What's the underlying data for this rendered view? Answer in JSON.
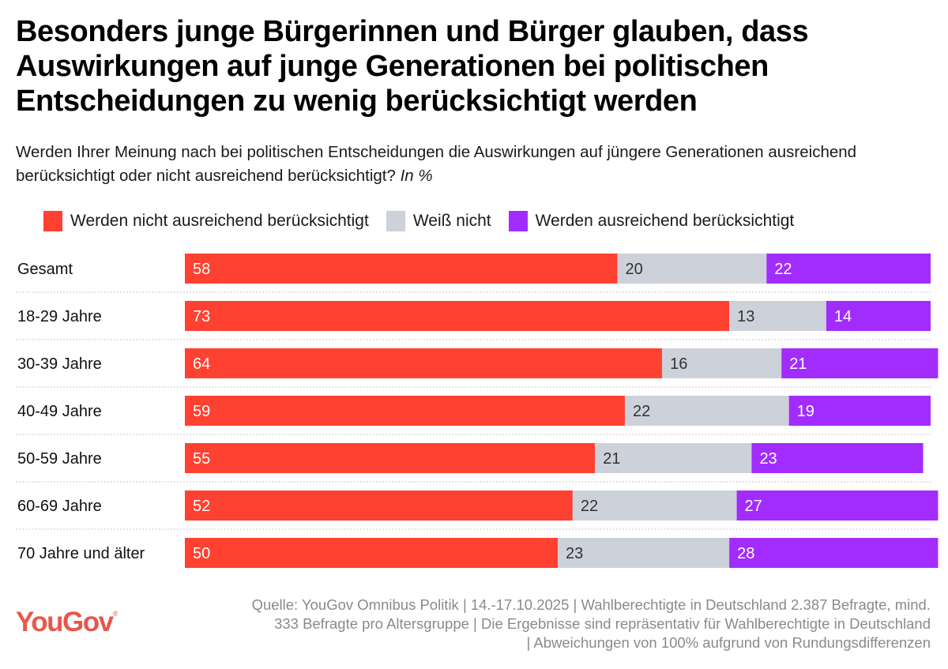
{
  "colors": {
    "not_sufficient": "#ff4131",
    "dont_know": "#cdd1da",
    "sufficient": "#a22cfd",
    "label_on_dark": "#ffffff",
    "label_on_light": "#333333",
    "logo": "#e8574b"
  },
  "header": {
    "title": "Besonders junge Bürgerinnen und Bürger glauben, dass Auswirkungen auf junge Generationen bei politischen Entscheidungen zu wenig berücksichtigt werden",
    "subtitle": "Werden Ihrer Meinung nach bei politischen Entscheidungen die Auswirkungen auf jüngere Generationen ausreichend berücksichtigt oder nicht ausreichend berücksichtigt?",
    "unit": "In %"
  },
  "legend": [
    {
      "label": "Werden nicht ausreichend berücksichtigt",
      "color": "#ff4131"
    },
    {
      "label": "Weiß nicht",
      "color": "#cdd1da"
    },
    {
      "label": "Werden ausreichend berücksichtigt",
      "color": "#a22cfd"
    }
  ],
  "chart_data": {
    "type": "bar",
    "orientation": "horizontal",
    "stacked": true,
    "title": "Besonders junge Bürgerinnen und Bürger glauben, dass Auswirkungen auf junge Generationen bei politischen Entscheidungen zu wenig berücksichtigt werden",
    "subtitle": "Werden Ihrer Meinung nach bei politischen Entscheidungen die Auswirkungen auf jüngere Generationen ausreichend berücksichtigt oder nicht ausreichend berücksichtigt? In %",
    "xlabel": "",
    "ylabel": "",
    "xlim": [
      0,
      100
    ],
    "grid": false,
    "legend_position": "top",
    "categories": [
      "Gesamt",
      "18-29 Jahre",
      "30-39 Jahre",
      "40-49 Jahre",
      "50-59 Jahre",
      "60-69 Jahre",
      "70 Jahre und älter"
    ],
    "series": [
      {
        "name": "Werden nicht ausreichend berücksichtigt",
        "color": "#ff4131",
        "values": [
          58,
          73,
          64,
          59,
          55,
          52,
          50
        ]
      },
      {
        "name": "Weiß nicht",
        "color": "#cdd1da",
        "values": [
          20,
          13,
          16,
          22,
          21,
          22,
          23
        ]
      },
      {
        "name": "Werden ausreichend berücksichtigt",
        "color": "#a22cfd",
        "values": [
          22,
          14,
          21,
          19,
          23,
          27,
          28
        ]
      }
    ]
  },
  "footer": {
    "source_lines": [
      "Quelle: YouGov Omnibus Politik | 14.-17.10.2025 | Wahlberechtigte in Deutschland 2.387 Befragte, mind.",
      "333 Befragte pro Altersgruppe | Die Ergebnisse sind repräsentativ für Wahlberechtigte in Deutschland",
      "| Abweichungen von 100% aufgrund von Rundungsdifferenzen"
    ],
    "logo_text": "YouGov",
    "logo_mark": "®"
  }
}
